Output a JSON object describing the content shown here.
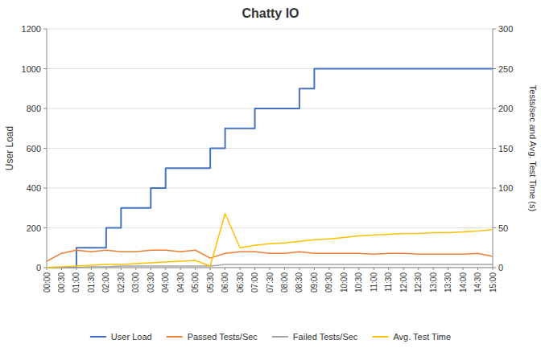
{
  "chart_data": {
    "type": "line",
    "title": "Chatty IO",
    "ylabel": "User Load",
    "y2label": "Tests/sec and Avg. Test Time (s)",
    "categories": [
      "00:00",
      "00:30",
      "01:00",
      "01:30",
      "02:00",
      "02:30",
      "03:00",
      "03:30",
      "04:00",
      "04:30",
      "05:00",
      "05:30",
      "06:00",
      "06:30",
      "07:00",
      "07:30",
      "08:00",
      "08:30",
      "09:00",
      "09:30",
      "10:00",
      "10:30",
      "11:00",
      "11:30",
      "12:00",
      "12:30",
      "13:00",
      "13:30",
      "14:00",
      "14:30",
      "15:00"
    ],
    "series": [
      {
        "name": "User Load",
        "color": "#4472C4",
        "line_style": "step",
        "axis": "y",
        "values": [
          0,
          0,
          100,
          100,
          200,
          300,
          300,
          400,
          500,
          500,
          500,
          600,
          700,
          700,
          800,
          800,
          800,
          900,
          1000,
          1000,
          1000,
          1000,
          1000,
          1000,
          1000,
          1000,
          1000,
          1000,
          1000,
          1000,
          1000
        ]
      },
      {
        "name": "Passed Tests/Sec",
        "color": "#ED7D31",
        "axis": "y2",
        "values": [
          8,
          18,
          22,
          20,
          22,
          20,
          20,
          22,
          22,
          20,
          22,
          12,
          18,
          20,
          20,
          18,
          18,
          20,
          18,
          18,
          18,
          18,
          17,
          18,
          18,
          17,
          17,
          17,
          17,
          18,
          14
        ]
      },
      {
        "name": "Failed Tests/Sec",
        "color": "#A5A5A5",
        "axis": "y2",
        "values": [
          0,
          0,
          0,
          1,
          1,
          2,
          2,
          2,
          2,
          2,
          2,
          2,
          4,
          4,
          4,
          4,
          4,
          4,
          4,
          4,
          4,
          4,
          4,
          4,
          4,
          4,
          4,
          4,
          4,
          4,
          4
        ]
      },
      {
        "name": "Avg. Test Time",
        "color": "#FFC000",
        "axis": "y2",
        "values": [
          0,
          1,
          2,
          3,
          4,
          4,
          5,
          6,
          7,
          8,
          9,
          2,
          68,
          25,
          28,
          30,
          31,
          33,
          35,
          36,
          38,
          40,
          41,
          42,
          43,
          43,
          44,
          44,
          45,
          46,
          48
        ]
      }
    ],
    "ylim": [
      0,
      1200
    ],
    "yticks": [
      0,
      200,
      400,
      600,
      800,
      1000,
      1200
    ],
    "y2lim": [
      0,
      300
    ],
    "y2ticks": [
      0,
      50,
      100,
      150,
      200,
      250,
      300
    ],
    "grid": true,
    "legend": "bottom"
  }
}
